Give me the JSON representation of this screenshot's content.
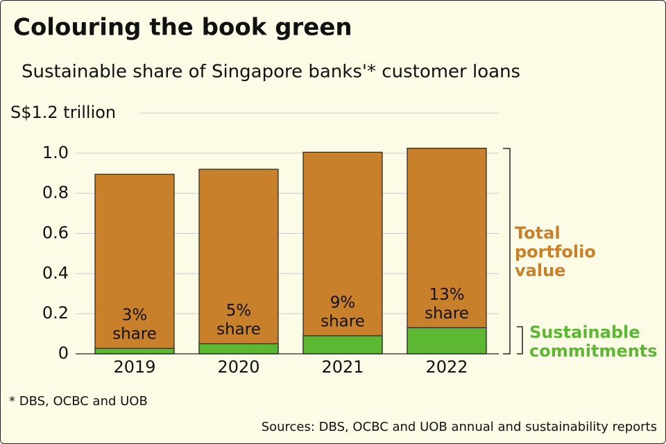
{
  "chart_data": {
    "type": "bar",
    "title": "Colouring the book green",
    "subtitle": "Sustainable share of Singapore banks'* customer loans",
    "categories": [
      "2019",
      "2020",
      "2021",
      "2022"
    ],
    "series": [
      {
        "name": "Total portfolio value",
        "color": "#c8802a",
        "values": [
          0.895,
          0.92,
          1.005,
          1.025
        ]
      },
      {
        "name": "Sustainable commitments",
        "color": "#5cb832",
        "values": [
          0.027,
          0.05,
          0.09,
          0.13
        ]
      }
    ],
    "shares": {
      "values": [
        3,
        5,
        9,
        13
      ],
      "value_labels": [
        "3%",
        "5%",
        "9%",
        "13%"
      ],
      "label_suffix": "share"
    },
    "ylim": [
      0,
      1.2
    ],
    "yticks": [
      0,
      0.2,
      0.4,
      0.6,
      0.8,
      {
        "value": 1,
        "label": "1.0"
      },
      {
        "value": 1.2,
        "label": "S$1.2 trillion"
      }
    ],
    "grid": true,
    "footnote": "* DBS, OCBC and UOB",
    "source": "Sources: DBS, OCBC and UOB annual and sustainability reports"
  }
}
